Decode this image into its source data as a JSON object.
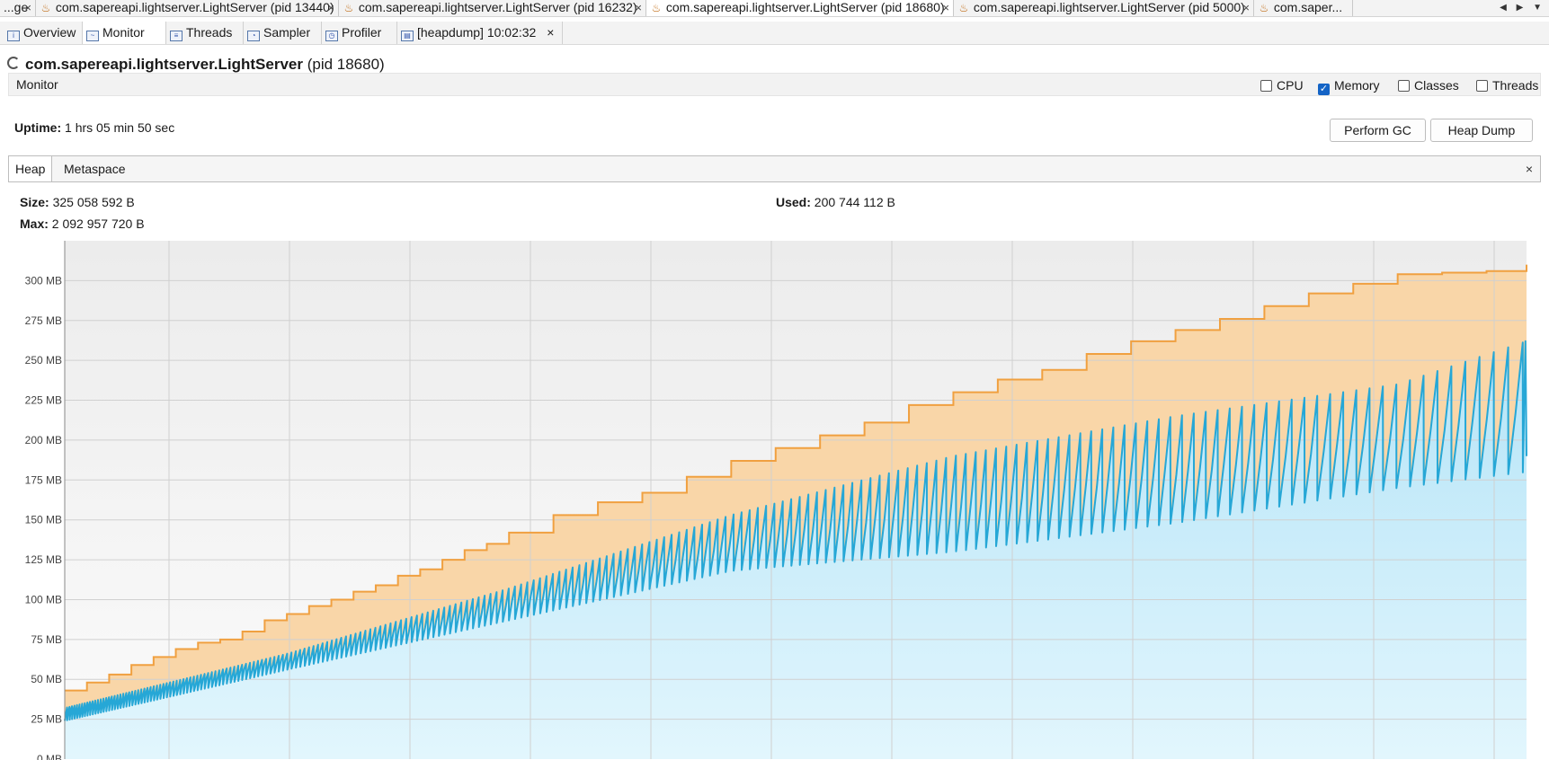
{
  "doc_tabs": [
    {
      "label": "...ge",
      "closable": true
    },
    {
      "label": "com.sapereapi.lightserver.LightServer (pid 13440)",
      "closable": true
    },
    {
      "label": "com.sapereapi.lightserver.LightServer (pid 16232)",
      "closable": true
    },
    {
      "label": "com.sapereapi.lightserver.LightServer (pid 18680)",
      "closable": true,
      "active": true
    },
    {
      "label": "com.sapereapi.lightserver.LightServer (pid 5000)",
      "closable": true
    },
    {
      "label": "com.saper...",
      "closable": false
    }
  ],
  "doc_nav": "◀ ▶ ▼",
  "close_glyph": "×",
  "view_tabs": [
    {
      "label": "Overview",
      "icon": "overview-icon"
    },
    {
      "label": "Monitor",
      "icon": "monitor-icon",
      "active": true
    },
    {
      "label": "Threads",
      "icon": "threads-icon"
    },
    {
      "label": "Sampler",
      "icon": "sampler-icon"
    },
    {
      "label": "Profiler",
      "icon": "profiler-icon"
    },
    {
      "label": "[heapdump] 10:02:32",
      "icon": "heapdump-icon",
      "closable": true
    }
  ],
  "process": {
    "name": "com.sapereapi.lightserver.LightServer",
    "pid": "(pid 18680)"
  },
  "monitor": {
    "label": "Monitor",
    "checkboxes": [
      {
        "label": "CPU",
        "checked": false
      },
      {
        "label": "Memory",
        "checked": true
      },
      {
        "label": "Classes",
        "checked": false
      },
      {
        "label": "Threads",
        "checked": false
      }
    ],
    "uptime_label": "Uptime:",
    "uptime_value": "1 hrs 05 min 50 sec",
    "perform_gc": "Perform GC",
    "heap_dump": "Heap Dump"
  },
  "heap_tabs": [
    {
      "label": "Heap",
      "active": true
    },
    {
      "label": "Metaspace"
    }
  ],
  "heap_stats": {
    "size_label": "Size:",
    "size_value": "325 058 592 B",
    "max_label": "Max:",
    "max_value": "2 092 957 720 B",
    "used_label": "Used:",
    "used_value": "200 744 112 B"
  },
  "chart_data": {
    "type": "area",
    "title": "",
    "xlabel": "",
    "ylabel": "",
    "y_unit": "MB",
    "ylim": [
      0,
      325
    ],
    "y_ticks": [
      0,
      25,
      50,
      75,
      100,
      125,
      150,
      175,
      200,
      225,
      250,
      275,
      300
    ],
    "y_tick_labels": [
      "0 MB",
      "25 MB",
      "50 MB",
      "75 MB",
      "100 MB",
      "125 MB",
      "150 MB",
      "175 MB",
      "200 MB",
      "225 MB",
      "250 MB",
      "275 MB",
      "300 MB"
    ],
    "x_minutes": [
      0,
      65.8
    ],
    "grid": true,
    "legend": "none",
    "series": [
      {
        "id": "heap_size",
        "color": "#f0a040",
        "fill": "#f9d6a8",
        "x": [
          0,
          1,
          2,
          3,
          4,
          5,
          6,
          7,
          8,
          9,
          10,
          11,
          12,
          13,
          14,
          15,
          16,
          17,
          18,
          19,
          20,
          22,
          24,
          26,
          28,
          30,
          32,
          34,
          36,
          38,
          40,
          42,
          44,
          46,
          48,
          50,
          52,
          54,
          56,
          58,
          60,
          62,
          64,
          65.8
        ],
        "values": [
          43,
          48,
          53,
          59,
          64,
          69,
          73,
          75,
          80,
          87,
          91,
          96,
          100,
          105,
          109,
          115,
          119,
          125,
          131,
          135,
          142,
          153,
          161,
          167,
          177,
          187,
          195,
          203,
          211,
          222,
          230,
          238,
          244,
          254,
          262,
          269,
          276,
          284,
          292,
          298,
          304,
          305,
          306,
          310
        ]
      },
      {
        "id": "heap_used",
        "color": "#26a7d6",
        "fill": "#bfe9f9",
        "pattern": "gc-sawtooth",
        "trough_x": [
          0,
          10,
          20,
          30,
          40,
          50,
          60,
          65.8
        ],
        "trough_values": [
          24,
          56,
          87,
          118,
          130,
          148,
          170,
          180
        ],
        "peak_x": [
          0,
          10,
          20,
          30,
          40,
          50,
          60,
          65.8
        ],
        "peak_values": [
          32,
          66,
          107,
          153,
          190,
          215,
          235,
          262
        ],
        "last_value": 190
      }
    ]
  }
}
